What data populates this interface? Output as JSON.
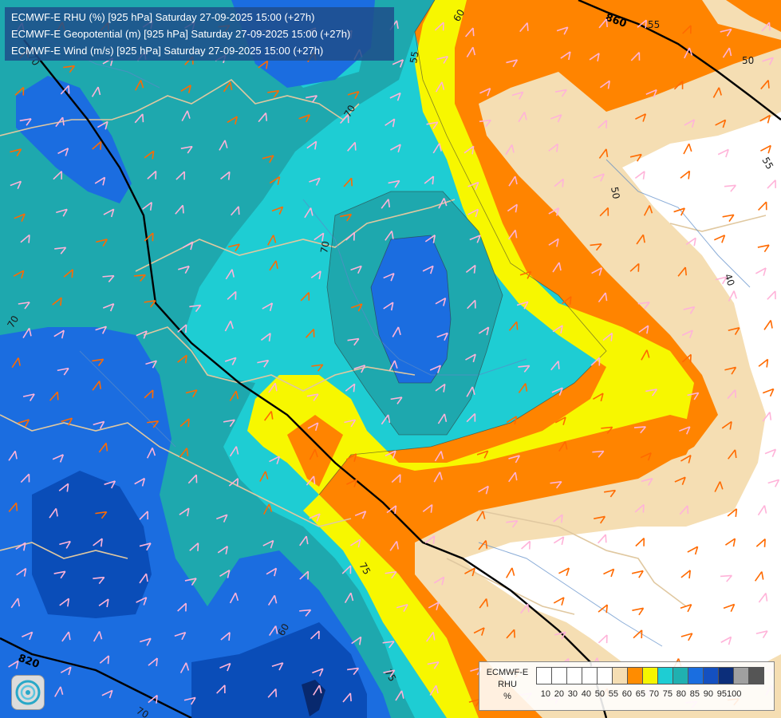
{
  "title_lines": [
    "ECMWF-E RHU (%) [925 hPa] Saturday 27-09-2025 15:00 (+27h)",
    "ECMWF-E Geopotential (m) [925 hPa] Saturday 27-09-2025 15:00 (+27h)",
    "ECMWF-E Wind (m/s) [925 hPa] Saturday 27-09-2025 15:00 (+27h)"
  ],
  "legend": {
    "model": "ECMWF-E",
    "variable": "RHU",
    "unit": "%",
    "ticks": [
      "10",
      "20",
      "30",
      "40",
      "50",
      "55",
      "60",
      "65",
      "70",
      "75",
      "80",
      "85",
      "90",
      "95",
      "100"
    ],
    "colors": [
      "#ffffff",
      "#ffffff",
      "#ffffff",
      "#ffffff",
      "#ffffff",
      "#f5deb3",
      "#ff8c00",
      "#f5f500",
      "#1ecdd3",
      "#20b0b0",
      "#1a6ee0",
      "#1450c0",
      "#0c2e7a",
      "#a0a0a0",
      "#555555"
    ]
  },
  "contour_labels": {
    "rhu": [
      "60",
      "55",
      "50",
      "55",
      "40",
      "70",
      "70",
      "55",
      "70",
      "70",
      "60",
      "75",
      "75",
      "70",
      "50"
    ],
    "geopotential": [
      "860",
      "820"
    ]
  },
  "colors": {
    "white": "#ffffff",
    "wheat": "#f5deb3",
    "orange": "#ff8400",
    "yellow": "#f7f700",
    "cyan": "#1ecdd3",
    "teal": "#1ea8ae",
    "blue": "#1b6de0",
    "darkblue": "#0a4db8",
    "navy": "#08296e",
    "borders": "#e0c8a0",
    "rivers": "#5a8ac8",
    "barbs_warm": "#ff6a00",
    "barbs_light": "#ffb3d9"
  }
}
